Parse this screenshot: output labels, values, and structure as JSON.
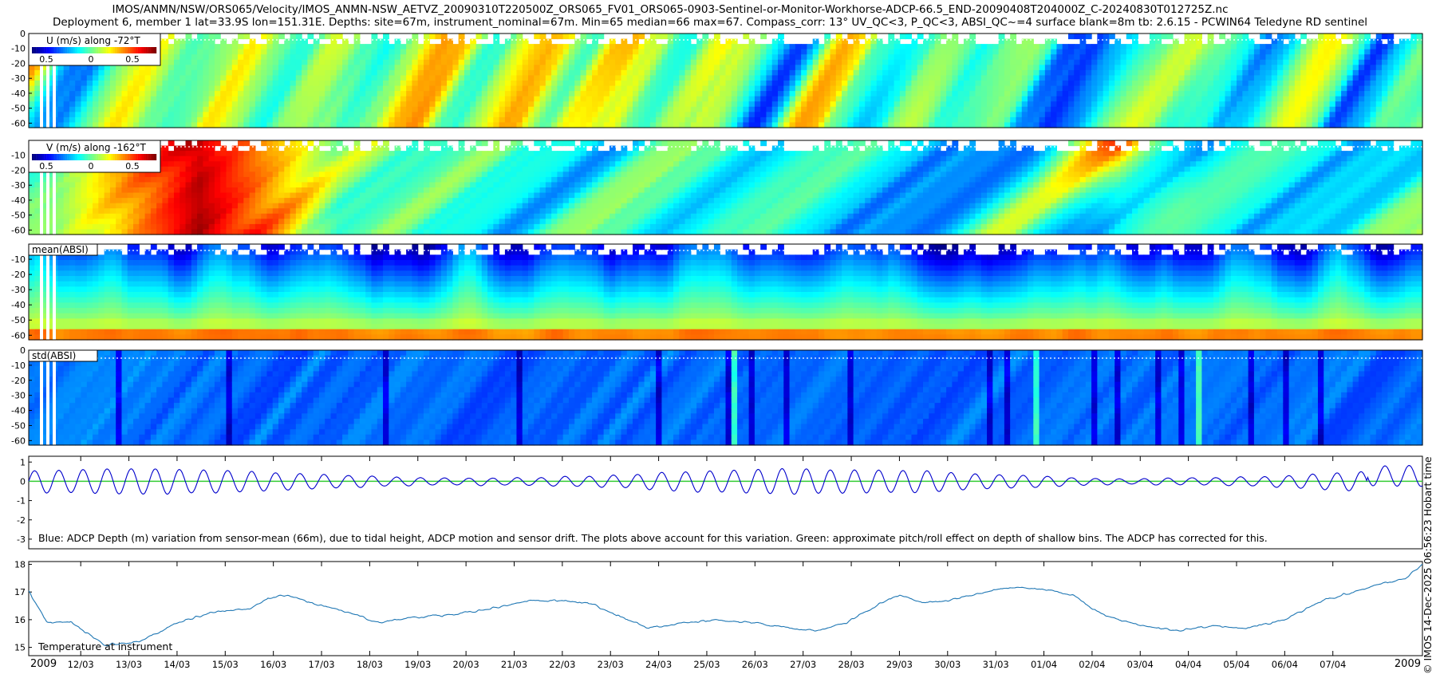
{
  "header": {
    "title_line1": "IMOS/ANMN/NSW/ORS065/Velocity/IMOS_ANMN-NSW_AETVZ_20090310T220500Z_ORS065_FV01_ORS065-0903-Sentinel-or-Monitor-Workhorse-ADCP-66.5_END-20090408T204000Z_C-20240830T012725Z.nc",
    "title_line2": "Deployment 6, member 1 lat=33.9S lon=151.31E. Depths: site=67m, instrument_nominal=67m. Min=65 median=66 max=67. Compass_corr: 13° UV_QC<3, P_QC<3, ABSI_QC~=4 surface blank=8m tb: 2.6.15 - PCWIN64 Teledyne RD sentinel"
  },
  "side_label": "© IMOS 14-Dec-2025 06:56:23 Hobart time",
  "colors": {
    "trace_blue": "#0000cc",
    "pitch_green": "#33cc33",
    "temp_line": "#1f77b4"
  },
  "chart_data": [
    {
      "type": "heatmap",
      "legend": "U (m/s) along -72°T",
      "colorbar_ticks": [
        "0.5",
        "0",
        "0.5"
      ],
      "yticks": [
        "0",
        "-10",
        "-20",
        "-30",
        "-40",
        "-50",
        "-60"
      ],
      "ylim": [
        -63,
        0
      ]
    },
    {
      "type": "heatmap",
      "legend": "V (m/s) along -162°T",
      "colorbar_ticks": [
        "0.5",
        "0",
        "0.5"
      ],
      "yticks": [
        "-10",
        "-20",
        "-30",
        "-40",
        "-50",
        "-60"
      ],
      "ylim": [
        -63,
        0
      ]
    },
    {
      "type": "heatmap",
      "legend": "mean(ABSI)",
      "yticks": [
        "-10",
        "-20",
        "-30",
        "-40",
        "-50",
        "-60"
      ],
      "ylim": [
        -63,
        0
      ]
    },
    {
      "type": "heatmap",
      "legend": "std(ABSI)",
      "yticks": [
        "0",
        "-10",
        "-20",
        "-30",
        "-40",
        "-50",
        "-60"
      ],
      "ylim": [
        -63,
        0
      ]
    },
    {
      "type": "line",
      "annotation": "Blue: ADCP Depth (m) variation from sensor-mean (66m), due to tidal height, ADCP motion and sensor drift. The plots above account for this variation. Green: approximate pitch/roll effect on depth of shallow bins. The ADCP has corrected for this.",
      "yticks": [
        "1",
        "0",
        "-1",
        "-2",
        "-3"
      ],
      "ylim": [
        -3.5,
        1.3
      ],
      "series": [
        {
          "name": "ADCP depth variation (m)",
          "tidal_amplitude": 0.5,
          "mean": 0
        },
        {
          "name": "pitch/roll effect (m)",
          "mean": 0
        }
      ]
    },
    {
      "type": "line",
      "annotation": "Temperature at instrument",
      "yticks": [
        "18",
        "17",
        "16",
        "15"
      ],
      "ylim": [
        14.7,
        18.1
      ],
      "x_year_left": "2009",
      "x_year_right": "2009",
      "xticks": [
        "12/03",
        "13/03",
        "14/03",
        "15/03",
        "16/03",
        "17/03",
        "18/03",
        "19/03",
        "20/03",
        "21/03",
        "22/03",
        "23/03",
        "24/03",
        "25/03",
        "26/03",
        "27/03",
        "28/03",
        "29/03",
        "30/03",
        "31/03",
        "01/04",
        "02/04",
        "03/04",
        "04/04",
        "05/04",
        "06/04",
        "07/04"
      ],
      "x_day_start": 10.92,
      "x_day_end": 39.86,
      "series": [
        {
          "name": "Temperature (°C)",
          "x_days": [
            10.9,
            11.3,
            11.8,
            12.5,
            13.2,
            14.0,
            14.8,
            15.5,
            15.9,
            16.3,
            16.8,
            17.5,
            18.2,
            19.0,
            19.8,
            20.5,
            21.3,
            22.0,
            22.6,
            23.2,
            23.8,
            24.5,
            25.2,
            26.0,
            26.8,
            27.3,
            27.9,
            28.6,
            29.0,
            29.5,
            30.0,
            30.8,
            31.4,
            32.0,
            32.6,
            33.2,
            34.0,
            34.8,
            35.5,
            36.2,
            37.0,
            37.8,
            38.4,
            39.0,
            39.5,
            39.86
          ],
          "values": [
            17.1,
            15.9,
            15.9,
            15.1,
            15.2,
            15.9,
            16.3,
            16.4,
            16.8,
            16.9,
            16.6,
            16.3,
            15.9,
            16.1,
            16.2,
            16.4,
            16.7,
            16.7,
            16.6,
            16.1,
            15.7,
            15.9,
            16.0,
            15.9,
            15.7,
            15.6,
            15.9,
            16.6,
            16.9,
            16.6,
            16.7,
            17.0,
            17.2,
            17.1,
            16.9,
            16.2,
            15.8,
            15.6,
            15.8,
            15.7,
            16.0,
            16.7,
            17.0,
            17.3,
            17.5,
            18.0
          ]
        }
      ]
    }
  ]
}
